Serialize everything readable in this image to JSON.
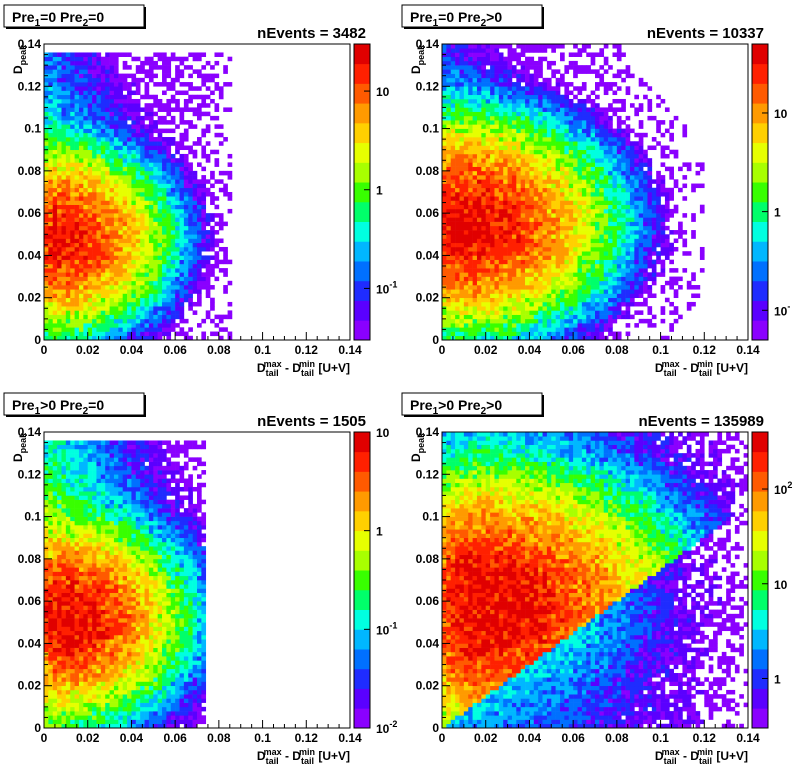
{
  "palette": [
    "#8a00ff",
    "#5a00ff",
    "#1f2cff",
    "#0070ff",
    "#00b7ff",
    "#00ffe0",
    "#00ff6a",
    "#38ff00",
    "#a8ff00",
    "#e6ff00",
    "#ffd000",
    "#ff9a00",
    "#ff5a00",
    "#ff2000",
    "#e00000"
  ],
  "chart_data": [
    {
      "type": "heatmap",
      "panel_title": [
        "Pre",
        "1",
        "=0  Pre",
        "2",
        "=0"
      ],
      "nevents_label": "nEvents = 3482",
      "xlabel": [
        "D",
        "tail",
        "max",
        " - D",
        "tail",
        "min",
        " [U+V]"
      ],
      "ylabel": [
        "D",
        "peak"
      ],
      "xlim": [
        0,
        0.14
      ],
      "ylim": [
        0,
        0.14
      ],
      "x_ticks": [
        "0",
        "0.02",
        "0.04",
        "0.06",
        "0.08",
        "0.1",
        "0.12",
        "0.14"
      ],
      "y_ticks": [
        "0",
        "0.02",
        "0.04",
        "0.06",
        "0.08",
        "0.1",
        "0.12",
        "0.14"
      ],
      "z_scale": "log",
      "z_range": [
        0.03,
        30
      ],
      "z_ticks": [
        {
          "label": "10",
          "value": 10
        },
        {
          "label": "1",
          "value": 1
        },
        {
          "label": "10",
          "sup": "-1",
          "value": 0.1
        }
      ],
      "core": {
        "cx": 0.006,
        "cy": 0.048,
        "sx": 0.011,
        "sy": 0.017,
        "peak": 18
      },
      "extent": {
        "xmax": 0.085,
        "ymax": 0.135
      }
    },
    {
      "type": "heatmap",
      "panel_title": [
        "Pre",
        "1",
        "=0  Pre",
        "2",
        ">0"
      ],
      "nevents_label": "nEvents = 10337",
      "xlabel": [
        "D",
        "tail",
        "max",
        " - D",
        "tail",
        "min",
        " [U+V]"
      ],
      "ylabel": [
        "D",
        "peak"
      ],
      "xlim": [
        0,
        0.14
      ],
      "ylim": [
        0,
        0.14
      ],
      "x_ticks": [
        "0",
        "0.02",
        "0.04",
        "0.06",
        "0.08",
        "0.1",
        "0.12",
        "0.14"
      ],
      "y_ticks": [
        "0",
        "0.02",
        "0.04",
        "0.06",
        "0.08",
        "0.1",
        "0.12",
        "0.14"
      ],
      "z_scale": "log",
      "z_range": [
        0.05,
        50
      ],
      "z_ticks": [
        {
          "label": "10",
          "value": 10
        },
        {
          "label": "1",
          "value": 1
        },
        {
          "label": "10",
          "sup": "-",
          "value": 0.1
        }
      ],
      "core": {
        "cx": 0.008,
        "cy": 0.055,
        "sx": 0.015,
        "sy": 0.02,
        "peak": 35
      },
      "extent": {
        "xmax": 0.12,
        "ymax": 0.14
      }
    },
    {
      "type": "heatmap",
      "panel_title": [
        "Pre",
        "1",
        ">0  Pre",
        "2",
        "=0"
      ],
      "nevents_label": "nEvents = 1505",
      "xlabel": [
        "D",
        "tail",
        "max",
        " - D",
        "tail",
        "min",
        " [U+V]"
      ],
      "ylabel": [
        "D",
        "peak"
      ],
      "xlim": [
        0,
        0.14
      ],
      "ylim": [
        0,
        0.14
      ],
      "x_ticks": [
        "0",
        "0.02",
        "0.04",
        "0.06",
        "0.08",
        "0.1",
        "0.12",
        "0.14"
      ],
      "y_ticks": [
        "0",
        "0.02",
        "0.04",
        "0.06",
        "0.08",
        "0.1",
        "0.12",
        "0.14"
      ],
      "z_scale": "log",
      "z_range": [
        0.01,
        10
      ],
      "z_ticks": [
        {
          "label": "10",
          "value": 10
        },
        {
          "label": "1",
          "value": 1
        },
        {
          "label": "10",
          "sup": "-1",
          "value": 0.1
        },
        {
          "label": "10",
          "sup": "-2",
          "value": 0.01
        }
      ],
      "core": {
        "cx": 0.008,
        "cy": 0.052,
        "sx": 0.012,
        "sy": 0.018,
        "peak": 7
      },
      "extent": {
        "xmax": 0.075,
        "ymax": 0.135
      }
    },
    {
      "type": "heatmap",
      "panel_title": [
        "Pre",
        "1",
        ">0  Pre",
        "2",
        ">0"
      ],
      "nevents_label": "nEvents = 135989",
      "xlabel": [
        "D",
        "tail",
        "max",
        " - D",
        "tail",
        "min",
        " [U+V]"
      ],
      "ylabel": [
        "D",
        "peak"
      ],
      "xlim": [
        0,
        0.14
      ],
      "ylim": [
        0,
        0.14
      ],
      "x_ticks": [
        "0",
        "0.02",
        "0.04",
        "0.06",
        "0.08",
        "0.1",
        "0.12",
        "0.14"
      ],
      "y_ticks": [
        "0",
        "0.02",
        "0.04",
        "0.06",
        "0.08",
        "0.1",
        "0.12",
        "0.14"
      ],
      "z_scale": "log",
      "z_range": [
        0.3,
        400
      ],
      "z_ticks": [
        {
          "label": "10",
          "sup": "2",
          "value": 100
        },
        {
          "label": "10",
          "value": 10
        },
        {
          "label": "1",
          "value": 1
        }
      ],
      "core": {
        "cx": 0.015,
        "cy": 0.058,
        "sx": 0.02,
        "sy": 0.025,
        "peak": 300
      },
      "extent": {
        "xmax": 0.14,
        "ymax": 0.14
      }
    }
  ]
}
